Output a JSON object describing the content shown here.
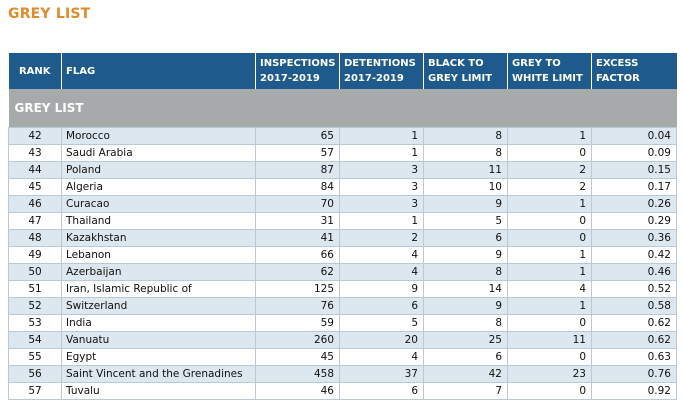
{
  "title": "GREY LIST",
  "columns": {
    "rank": "RANK",
    "flag": "FLAG",
    "inspections": [
      "INSPECTIONS",
      "2017-2019"
    ],
    "detentions": [
      "DETENTIONS",
      "2017-2019"
    ],
    "black_to_grey": [
      "BLACK  TO",
      "GREY LIMIT"
    ],
    "grey_to_white": [
      "GREY TO",
      "WHITE LIMIT"
    ],
    "excess": [
      "EXCESS",
      "FACTOR"
    ]
  },
  "section_label": "GREY LIST",
  "rows": [
    {
      "rank": "42",
      "flag": "Morocco",
      "inspections": "65",
      "detentions": "1",
      "black_to_grey": "8",
      "grey_to_white": "1",
      "excess": "0.04"
    },
    {
      "rank": "43",
      "flag": "Saudi Arabia",
      "inspections": "57",
      "detentions": "1",
      "black_to_grey": "8",
      "grey_to_white": "0",
      "excess": "0.09"
    },
    {
      "rank": "44",
      "flag": "Poland",
      "inspections": "87",
      "detentions": "3",
      "black_to_grey": "11",
      "grey_to_white": "2",
      "excess": "0.15"
    },
    {
      "rank": "45",
      "flag": "Algeria",
      "inspections": "84",
      "detentions": "3",
      "black_to_grey": "10",
      "grey_to_white": "2",
      "excess": "0.17"
    },
    {
      "rank": "46",
      "flag": "Curacao",
      "inspections": "70",
      "detentions": "3",
      "black_to_grey": "9",
      "grey_to_white": "1",
      "excess": "0.26"
    },
    {
      "rank": "47",
      "flag": "Thailand",
      "inspections": "31",
      "detentions": "1",
      "black_to_grey": "5",
      "grey_to_white": "0",
      "excess": "0.29"
    },
    {
      "rank": "48",
      "flag": "Kazakhstan",
      "inspections": "41",
      "detentions": "2",
      "black_to_grey": "6",
      "grey_to_white": "0",
      "excess": "0.36"
    },
    {
      "rank": "49",
      "flag": "Lebanon",
      "inspections": "66",
      "detentions": "4",
      "black_to_grey": "9",
      "grey_to_white": "1",
      "excess": "0.42"
    },
    {
      "rank": "50",
      "flag": "Azerbaijan",
      "inspections": "62",
      "detentions": "4",
      "black_to_grey": "8",
      "grey_to_white": "1",
      "excess": "0.46"
    },
    {
      "rank": "51",
      "flag": "Iran, Islamic Republic of",
      "inspections": "125",
      "detentions": "9",
      "black_to_grey": "14",
      "grey_to_white": "4",
      "excess": "0.52"
    },
    {
      "rank": "52",
      "flag": "Switzerland",
      "inspections": "76",
      "detentions": "6",
      "black_to_grey": "9",
      "grey_to_white": "1",
      "excess": "0.58"
    },
    {
      "rank": "53",
      "flag": "India",
      "inspections": "59",
      "detentions": "5",
      "black_to_grey": "8",
      "grey_to_white": "0",
      "excess": "0.62"
    },
    {
      "rank": "54",
      "flag": "Vanuatu",
      "inspections": "260",
      "detentions": "20",
      "black_to_grey": "25",
      "grey_to_white": "11",
      "excess": "0.62"
    },
    {
      "rank": "55",
      "flag": "Egypt",
      "inspections": "45",
      "detentions": "4",
      "black_to_grey": "6",
      "grey_to_white": "0",
      "excess": "0.63"
    },
    {
      "rank": "56",
      "flag": "Saint Vincent and the Grenadines",
      "inspections": "458",
      "detentions": "37",
      "black_to_grey": "42",
      "grey_to_white": "23",
      "excess": "0.76"
    },
    {
      "rank": "57",
      "flag": "Tuvalu",
      "inspections": "46",
      "detentions": "6",
      "black_to_grey": "7",
      "grey_to_white": "0",
      "excess": "0.92"
    }
  ]
}
